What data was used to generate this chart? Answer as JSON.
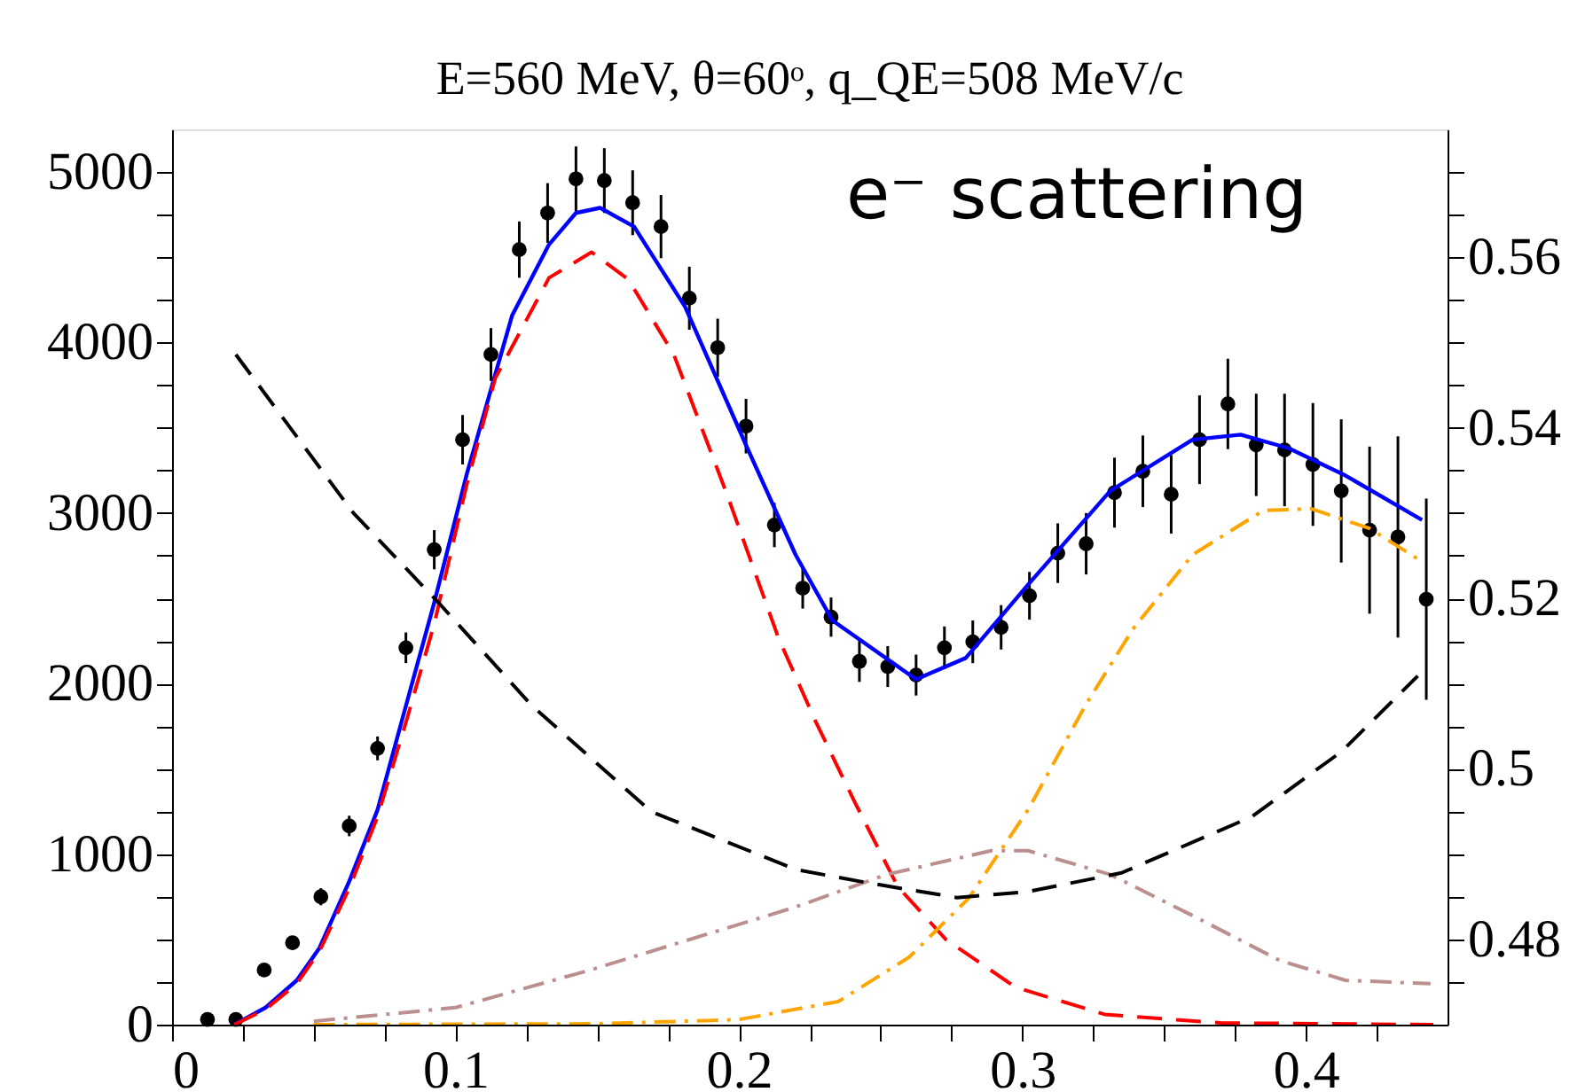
{
  "chart_data": {
    "type": "line",
    "title": "E=560 MeV, θ=60ᵒ, q_QE=508 MeV/c",
    "annotations": [
      "e⁻ scattering"
    ],
    "xlim": [
      0,
      0.45
    ],
    "xticks": [
      0,
      {
        "value": 0.025,
        "label": null
      },
      {
        "value": 0.05,
        "label": null
      },
      {
        "value": 0.075,
        "label": null
      },
      0.1,
      {
        "value": 0.125,
        "label": null
      },
      {
        "value": 0.15,
        "label": null
      },
      {
        "value": 0.175,
        "label": null
      },
      0.2,
      {
        "value": 0.225,
        "label": null
      },
      {
        "value": 0.25,
        "label": null
      },
      {
        "value": 0.275,
        "label": null
      },
      0.3,
      {
        "value": 0.325,
        "label": null
      },
      {
        "value": 0.35,
        "label": null
      },
      {
        "value": 0.375,
        "label": null
      },
      0.4,
      {
        "value": 0.425,
        "label": null
      }
    ],
    "ylim": [
      0,
      5250
    ],
    "yticks": [
      0,
      {
        "value": 250,
        "label": null
      },
      {
        "value": 500,
        "label": null
      },
      {
        "value": 750,
        "label": null
      },
      1000,
      {
        "value": 1250,
        "label": null
      },
      {
        "value": 1500,
        "label": null
      },
      {
        "value": 1750,
        "label": null
      },
      2000,
      {
        "value": 2250,
        "label": null
      },
      {
        "value": 2500,
        "label": null
      },
      {
        "value": 2750,
        "label": null
      },
      3000,
      {
        "value": 3250,
        "label": null
      },
      {
        "value": 3500,
        "label": null
      },
      {
        "value": 3750,
        "label": null
      },
      4000,
      {
        "value": 4250,
        "label": null
      },
      {
        "value": 4500,
        "label": null
      },
      {
        "value": 4750,
        "label": null
      },
      5000
    ],
    "y2lim": [
      0.47,
      0.575
    ],
    "y2ticks": [
      {
        "value": 0.475,
        "label": null
      },
      0.48,
      {
        "value": 0.485,
        "label": null
      },
      {
        "value": 0.49,
        "label": null
      },
      {
        "value": 0.495,
        "label": null
      },
      0.5,
      {
        "value": 0.505,
        "label": null
      },
      {
        "value": 0.51,
        "label": null
      },
      {
        "value": 0.515,
        "label": null
      },
      0.52,
      {
        "value": 0.525,
        "label": null
      },
      {
        "value": 0.53,
        "label": null
      },
      {
        "value": 0.535,
        "label": null
      },
      0.54,
      {
        "value": 0.545,
        "label": null
      },
      {
        "value": 0.55,
        "label": null
      },
      {
        "value": 0.555,
        "label": null
      },
      0.56,
      {
        "value": 0.565,
        "label": null
      },
      {
        "value": 0.57,
        "label": null
      }
    ],
    "grid": false,
    "series": [
      {
        "type": "scatter",
        "color": "#000000",
        "marker": "circle",
        "x": [
          0.0125,
          0.0225,
          0.0325,
          0.0425,
          0.0525,
          0.0625,
          0.0725,
          0.0825,
          0.0925,
          0.1025,
          0.1125,
          0.1225,
          0.1325,
          0.1425,
          0.1525,
          0.1625,
          0.1725,
          0.1825,
          0.1925,
          0.2025,
          0.2125,
          0.2225,
          0.2325,
          0.2425,
          0.2525,
          0.2625,
          0.2725,
          0.2825,
          0.2925,
          0.3025,
          0.3125,
          0.3225,
          0.3325,
          0.3425,
          0.3525,
          0.3625,
          0.3725,
          0.3825,
          0.3925,
          0.4025,
          0.4125,
          0.4225,
          0.4325,
          0.4425
        ],
        "values": [
          30,
          30,
          320,
          480,
          750,
          1165,
          1620,
          2210,
          2785,
          3430,
          3930,
          4545,
          4760,
          4960,
          4950,
          4820,
          4680,
          4260,
          3970,
          3510,
          2930,
          2560,
          2390,
          2130,
          2100,
          2050,
          2210,
          2245,
          2330,
          2515,
          2765,
          2820,
          3120,
          3245,
          3110,
          3430,
          3640,
          3400,
          3370,
          3285,
          3130,
          2900,
          2860,
          2495
        ],
        "errors": [
          null,
          null,
          30,
          40,
          50,
          60,
          70,
          90,
          115,
          145,
          155,
          165,
          175,
          190,
          190,
          190,
          185,
          185,
          170,
          160,
          130,
          120,
          115,
          120,
          120,
          120,
          125,
          125,
          130,
          140,
          175,
          180,
          205,
          210,
          230,
          260,
          265,
          300,
          330,
          360,
          420,
          490,
          590,
          590
        ]
      },
      {
        "color": "#0000ff",
        "line_style": "solid",
        "x": [
          0.022,
          0.033,
          0.044,
          0.052,
          0.0625,
          0.0725,
          0.083,
          0.0925,
          0.104,
          0.12,
          0.133,
          0.1425,
          0.151,
          0.163,
          0.181,
          0.203,
          0.22,
          0.233,
          0.2625,
          0.28,
          0.302,
          0.331,
          0.36,
          0.377,
          0.394,
          0.414,
          0.441
        ],
        "values": [
          0,
          100,
          260,
          450,
          840,
          1260,
          1900,
          2475,
          3230,
          4160,
          4575,
          4760,
          4790,
          4680,
          4210,
          3380,
          2755,
          2370,
          2025,
          2150,
          2580,
          3130,
          3430,
          3460,
          3380,
          3220,
          2960
        ]
      },
      {
        "color": "#ff0000",
        "line_style": "dashed",
        "x": [
          0.022,
          0.033,
          0.044,
          0.052,
          0.0625,
          0.0725,
          0.083,
          0.0925,
          0.104,
          0.114,
          0.133,
          0.148,
          0.161,
          0.177,
          0.196,
          0.214,
          0.227,
          0.241,
          0.256,
          0.273,
          0.2975,
          0.329,
          0.37,
          0.445
        ],
        "values": [
          0,
          90,
          240,
          430,
          800,
          1220,
          1800,
          2350,
          3170,
          3790,
          4380,
          4530,
          4370,
          3930,
          3100,
          2265,
          1780,
          1300,
          810,
          500,
          220,
          60,
          10,
          0
        ]
      },
      {
        "color": "#ffa500",
        "line_style": "dashdot",
        "x": [
          0.05,
          0.15,
          0.2,
          0.235,
          0.26,
          0.281,
          0.302,
          0.3225,
          0.339,
          0.36,
          0.385,
          0.402,
          0.4225,
          0.441
        ],
        "values": [
          0,
          5,
          30,
          135,
          395,
          740,
          1260,
          1880,
          2320,
          2755,
          3015,
          3025,
          2910,
          2715
        ]
      },
      {
        "color": "#bc8f8f",
        "line_style": "dashdot",
        "x": [
          0.05,
          0.1,
          0.1475,
          0.22,
          0.252,
          0.289,
          0.302,
          0.331,
          0.36,
          0.391,
          0.414,
          0.444
        ],
        "values": [
          20,
          100,
          320,
          690,
          880,
          1020,
          1020,
          880,
          640,
          375,
          260,
          240
        ]
      },
      {
        "color": "#000000",
        "line_style": "dashed",
        "axis": "y2",
        "x": [
          0.0225,
          0.064,
          0.094,
          0.127,
          0.169,
          0.22,
          0.246,
          0.277,
          0.302,
          0.335,
          0.381,
          0.4125,
          0.4395
        ],
        "values": [
          0.5486,
          0.53,
          0.5195,
          0.5074,
          0.495,
          0.4882,
          0.4866,
          0.4849,
          0.4856,
          0.4878,
          0.4944,
          0.502,
          0.5109
        ]
      }
    ]
  }
}
